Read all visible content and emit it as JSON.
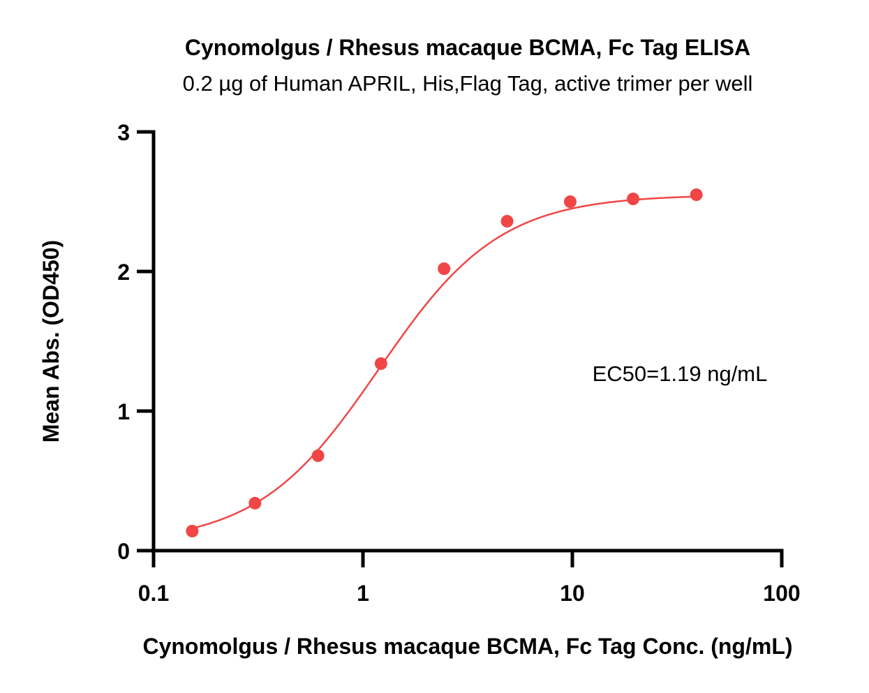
{
  "chart_data": {
    "type": "scatter",
    "title": "Cynomolgus / Rhesus macaque BCMA, Fc Tag ELISA",
    "subtitle": "0.2 µg of Human APRIL, His,Flag Tag, active trimer per well",
    "xlabel": "Cynomolgus / Rhesus macaque BCMA, Fc Tag Conc. (ng/mL)",
    "ylabel": "Mean Abs. (OD450)",
    "x_scale": "log",
    "xlim": [
      0.1,
      100
    ],
    "ylim": [
      0,
      3
    ],
    "x_ticks": [
      0.1,
      1,
      10,
      100
    ],
    "x_tick_labels": [
      "0.1",
      "1",
      "10",
      "100"
    ],
    "y_ticks": [
      0,
      1,
      2,
      3
    ],
    "y_tick_labels": [
      "0",
      "1",
      "2",
      "3"
    ],
    "grid": false,
    "series": [
      {
        "x": [
          0.153,
          0.305,
          0.61,
          1.22,
          2.44,
          4.88,
          9.77,
          19.5,
          39.1
        ],
        "y": [
          0.14,
          0.34,
          0.68,
          1.34,
          2.02,
          2.36,
          2.5,
          2.52,
          2.55
        ],
        "color": "#f04646"
      }
    ],
    "fit_curve": {
      "model": "4PL",
      "bottom": 0.05,
      "top": 2.55,
      "ec50": 1.19,
      "hill": 1.5,
      "color": "#f04646"
    },
    "annotations": [
      {
        "text": "EC50=1.19 ng/mL",
        "position": "center-right"
      }
    ]
  }
}
